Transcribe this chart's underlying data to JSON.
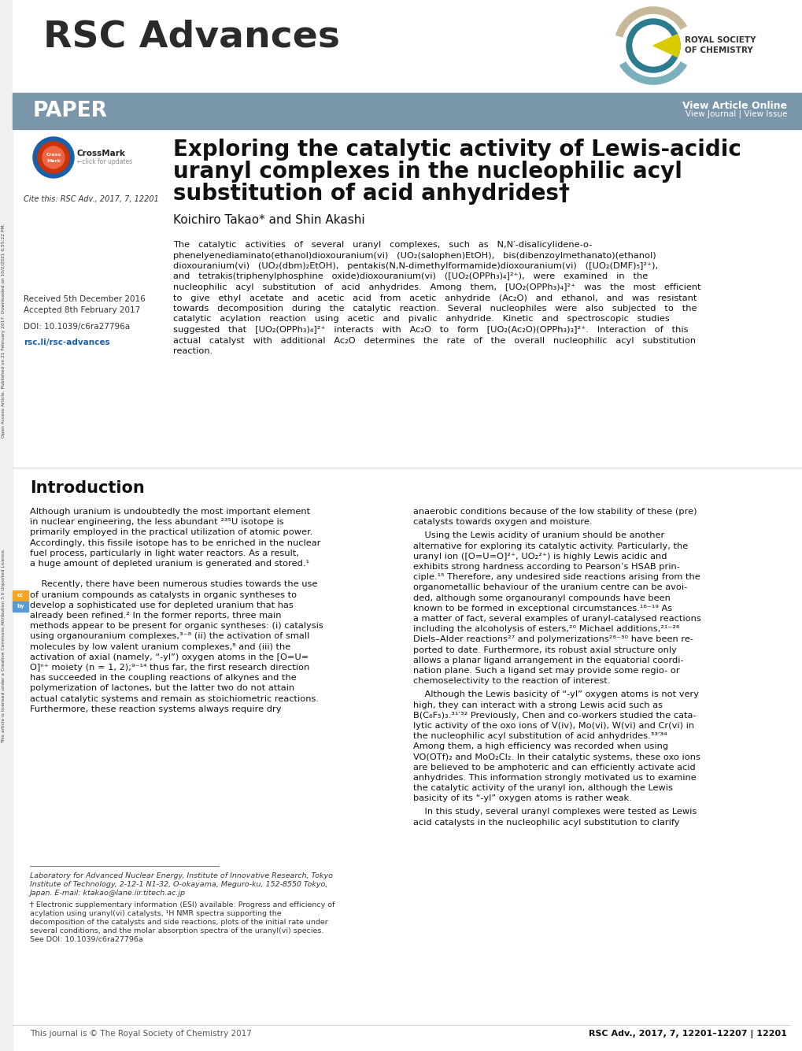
{
  "page_bg": "#ffffff",
  "header_bar_color": "#7a96aa",
  "rsc_title": "RSC Advances",
  "paper_label": "PAPER",
  "view_article_text": "View Article Online",
  "view_journal_text": "View Journal | View Issue",
  "article_title_line1": "Exploring the catalytic activity of Lewis-acidic",
  "article_title_line2": "uranyl complexes in the nucleophilic acyl",
  "article_title_line3": "substitution of acid anhydrides†",
  "authors": "Koichiro Takao* and Shin Akashi",
  "cite_text": "Cite this: RSC Adv., 2017, 7, 12201",
  "received_text": "Received 5th December 2016",
  "accepted_text": "Accepted 8th February 2017",
  "doi_text": "DOI: 10.1039/c6ra27796a",
  "rsc_link": "rsc.li/rsc-advances",
  "intro_title": "Introduction",
  "footer_left": "This journal is © The Royal Society of Chemistry 2017",
  "footer_right": "RSC Adv., 2017, 7, 12201–12207 | 12201",
  "open_access_text": "Open Access Article. Published on 21 February 2017. Downloaded on 10/2/2021 6:55:22 PM.",
  "open_access_text2": "This article is licensed under a Creative Commons Attribution 3.0 Unported Licence.",
  "abstract_lines": [
    "The   catalytic   activities   of   several   uranyl   complexes,   such   as   N,N′-disalicylidene-o-",
    "phenelyenediaminato(ethanol)dioxouranium(vi)   (UO₂(salophen)EtOH),   bis(dibenzoylmethanato)(ethanol)",
    "dioxouranium(vi)   (UO₂(dbm)₂EtOH),   pentakis(N,N-dimethylformamide)dioxouranium(vi)   ([UO₂(DMF)₅]²⁺),",
    "and   tetrakis(triphenylphosphine   oxide)dioxouranium(vi)   ([UO₂(OPPh₃)₄]²⁺),   were   examined   in   the",
    "nucleophilic   acyl   substitution   of   acid   anhydrides.   Among   them,   [UO₂(OPPh₃)₄]²⁺   was   the   most   efficient",
    "to   give   ethyl   acetate   and   acetic   acid   from   acetic   anhydride   (Ac₂O)   and   ethanol,   and   was   resistant",
    "towards   decomposition   during   the   catalytic   reaction.   Several   nucleophiles   were   also   subjected   to   the",
    "catalytic   acylation   reaction   using   acetic   and   pivalic   anhydride.   Kinetic   and   spectroscopic   studies",
    "suggested   that   [UO₂(OPPh₃)₄]²⁺   interacts   with   Ac₂O   to   form   [UO₂(Ac₂O)(OPPh₃)₃]²⁺.   Interaction   of   this",
    "actual   catalyst   with   additional   Ac₂O   determines   the   rate   of   the   overall   nucleophilic   acyl   substitution",
    "reaction."
  ],
  "intro_col1_lines": [
    "Although uranium is undoubtedly the most important element",
    "in nuclear engineering, the less abundant ²³⁵U isotope is",
    "primarily employed in the practical utilization of atomic power.",
    "Accordingly, this fissile isotope has to be enriched in the nuclear",
    "fuel process, particularly in light water reactors. As a result,",
    "a huge amount of depleted uranium is generated and stored.¹",
    "",
    "    Recently, there have been numerous studies towards the use",
    "of uranium compounds as catalysts in organic syntheses to",
    "develop a sophisticated use for depleted uranium that has",
    "already been refined.² In the former reports, three main",
    "methods appear to be present for organic syntheses: (i) catalysis",
    "using organouranium complexes,³⁻⁸ (ii) the activation of small",
    "molecules by low valent uranium complexes,⁸ and (iii) the",
    "activation of axial (namely, “-yl”) oxygen atoms in the [O=U=",
    "O]ⁿ⁺ moiety (n = 1, 2);⁹⁻¹⁴ thus far, the first research direction",
    "has succeeded in the coupling reactions of alkynes and the",
    "polymerization of lactones, but the latter two do not attain",
    "actual catalytic systems and remain as stoichiometric reactions.",
    "Furthermore, these reaction systems always require dry"
  ],
  "intro_col2_block1": [
    "anaerobic conditions because of the low stability of these (pre)",
    "catalysts towards oxygen and moisture."
  ],
  "intro_col2_block2": [
    "    Using the Lewis acidity of uranium should be another",
    "alternative for exploring its catalytic activity. Particularly, the",
    "uranyl ion ([O=U=O]²⁺, UO₂²⁺) is highly Lewis acidic and",
    "exhibits strong hardness according to Pearson’s HSAB prin-",
    "ciple.¹⁵ Therefore, any undesired side reactions arising from the",
    "organometallic behaviour of the uranium centre can be avoi-",
    "ded, although some organouranyl compounds have been",
    "known to be formed in exceptional circumstances.¹⁶⁻¹⁹ As",
    "a matter of fact, several examples of uranyl-catalysed reactions",
    "including the alcoholysis of esters,²⁰ Michael additions,²¹⁻²⁶",
    "Diels–Alder reactions²⁷ and polymerizations²⁸⁻³⁰ have been re-",
    "ported to date. Furthermore, its robust axial structure only",
    "allows a planar ligand arrangement in the equatorial coordi-",
    "nation plane. Such a ligand set may provide some regio- or",
    "chemoselectivity to the reaction of interest."
  ],
  "intro_col2_block3": [
    "    Although the Lewis basicity of “-yl” oxygen atoms is not very",
    "high, they can interact with a strong Lewis acid such as",
    "B(C₆F₅)₃.³¹′³² Previously, Chen and co-workers studied the cata-",
    "lytic activity of the oxo ions of V(iv), Mo(vi), W(vi) and Cr(vi) in",
    "the nucleophilic acyl substitution of acid anhydrides.³³′³⁴",
    "Among them, a high efficiency was recorded when using",
    "VO(OTf)₂ and MoO₂Cl₂. In their catalytic systems, these oxo ions",
    "are believed to be amphoteric and can efficiently activate acid",
    "anhydrides. This information strongly motivated us to examine",
    "the catalytic activity of the uranyl ion, although the Lewis",
    "basicity of its “-yl” oxygen atoms is rather weak."
  ],
  "intro_col2_block4": [
    "    In this study, several uranyl complexes were tested as Lewis",
    "acid catalysts in the nucleophilic acyl substitution to clarify"
  ],
  "fn1_lines": [
    "Laboratory for Advanced Nuclear Energy, Institute of Innovative Research, Tokyo",
    "Institute of Technology, 2-12-1 N1-32, O-okayama, Meguro-ku, 152-8550 Tokyo,",
    "Japan. E-mail: ktakao@lane.iir.titech.ac.jp"
  ],
  "fn2_lines": [
    "† Electronic supplementary information (ESI) available: Progress and efficiency of",
    "acylation using uranyl(vi) catalysts, ¹H NMR spectra supporting the",
    "decomposition of the catalysts and side reactions, plots of the initial rate under",
    "several conditions, and the molar absorption spectra of the uranyl(vi) species.",
    "See DOI: 10.1039/c6ra27796a"
  ]
}
